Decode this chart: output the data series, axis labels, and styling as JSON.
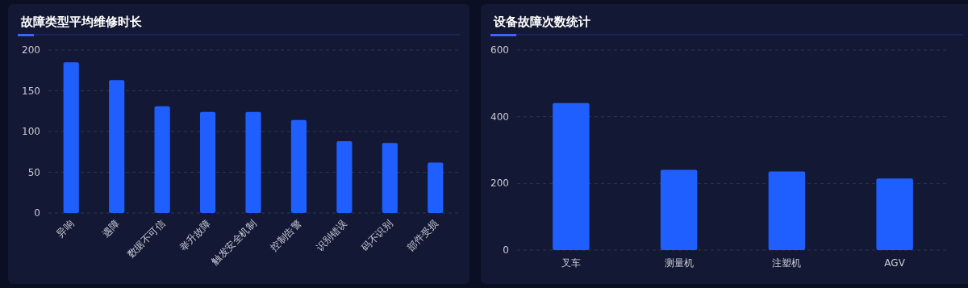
{
  "chart_data": [
    {
      "type": "bar",
      "title": "故障类型平均维修时长",
      "categories": [
        "异响",
        "遇障",
        "数据不可信",
        "举升故障",
        "触发安全机制",
        "控制告警",
        "识别错误",
        "码不识别",
        "部件受损"
      ],
      "values": [
        185,
        163,
        131,
        124,
        124,
        114,
        88,
        86,
        62
      ],
      "color": "#1f5fff",
      "ylim": [
        0,
        200
      ],
      "yticks": [
        0,
        50,
        100,
        150,
        200
      ],
      "grid": "y"
    },
    {
      "type": "bar",
      "title": "设备故障次数统计",
      "categories": [
        "叉车",
        "测量机",
        "注塑机",
        "AGV"
      ],
      "values": [
        441,
        241,
        236,
        215
      ],
      "color": "#1f5fff",
      "ylim": [
        0,
        600
      ],
      "yticks": [
        0,
        200,
        400,
        600
      ],
      "grid": "y"
    }
  ]
}
